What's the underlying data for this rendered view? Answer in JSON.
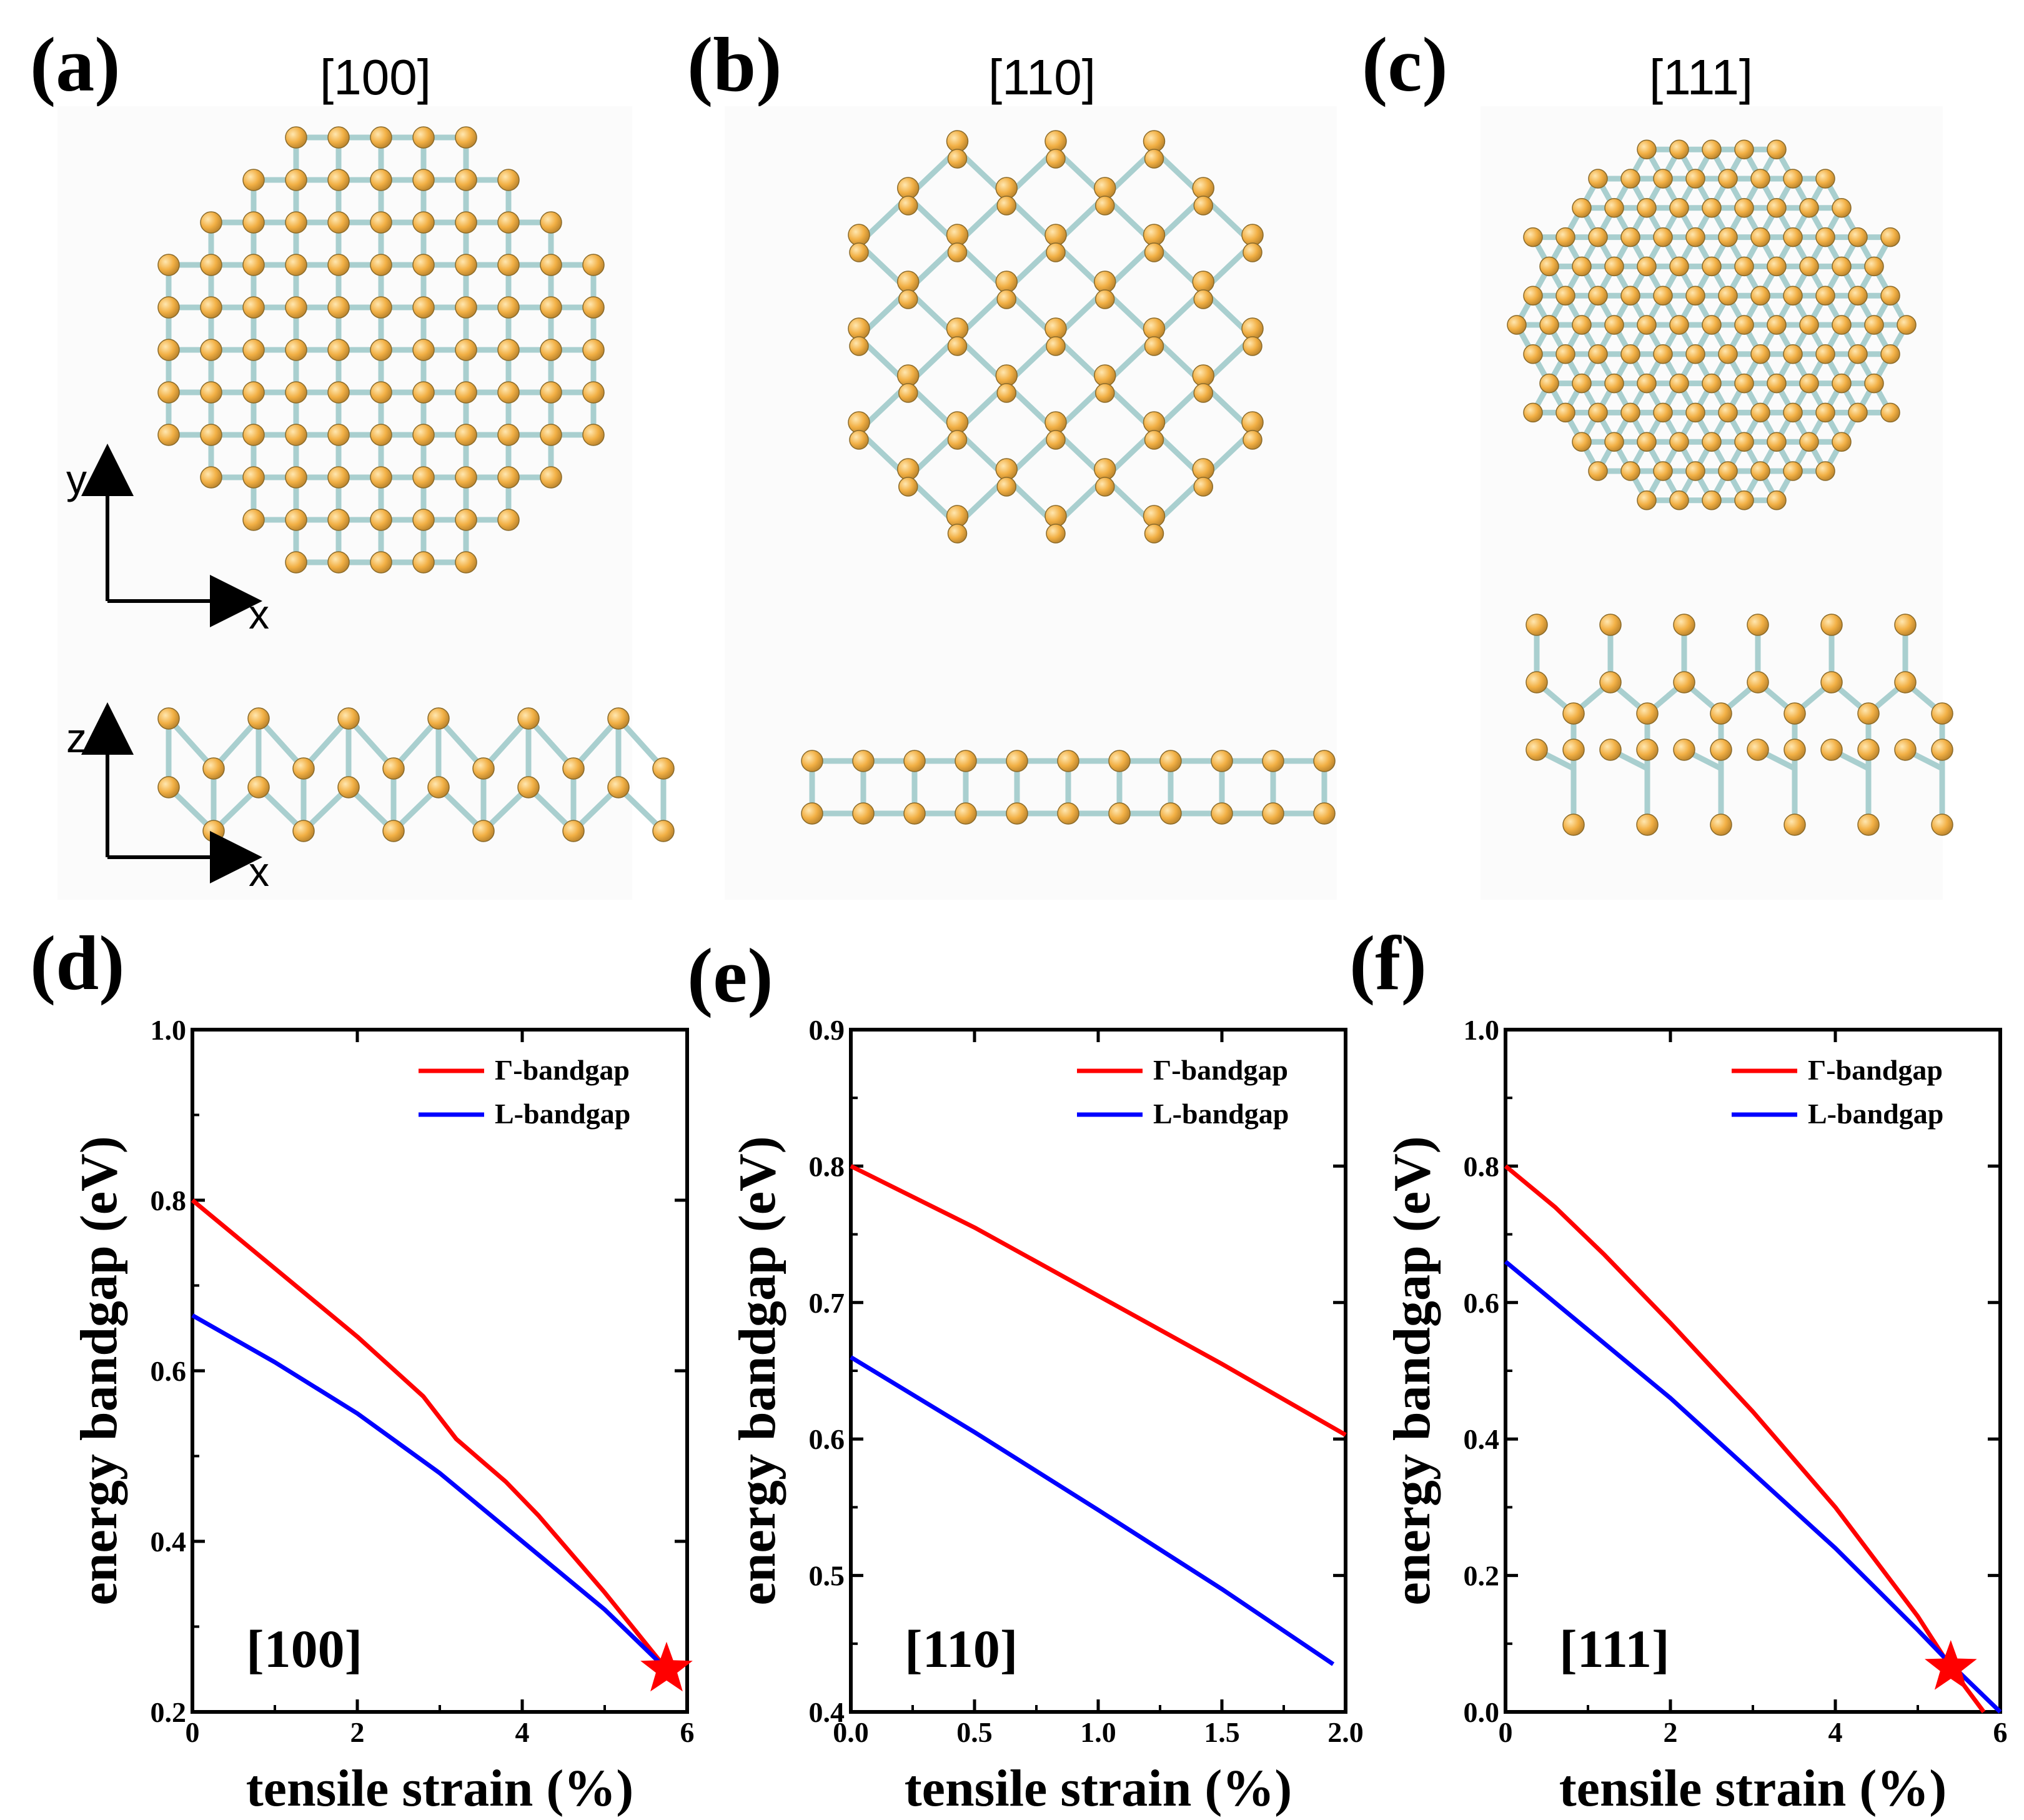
{
  "panels_top": [
    {
      "label": "(a)",
      "direction": "[100]",
      "axis_upper": [
        "x",
        "y"
      ],
      "axis_lower": [
        "x",
        "z"
      ]
    },
    {
      "label": "(b)",
      "direction": "[110]"
    },
    {
      "label": "(c)",
      "direction": "[111]"
    }
  ],
  "colors": {
    "gamma": "#ff0000",
    "L": "#0000ff",
    "atom": "#f2b045",
    "bond": "#a9cfcf",
    "star": "#ff0000"
  },
  "chart_data": [
    {
      "panel": "(d)",
      "type": "line",
      "inset_label": "[100]",
      "xlabel": "tensile strain (%)",
      "ylabel": "energy bandgap (eV)",
      "xlim": [
        0,
        6
      ],
      "ylim": [
        0.2,
        1.0
      ],
      "xticks": [
        "0",
        "2",
        "4",
        "6"
      ],
      "yticks": [
        "0.2",
        "0.4",
        "0.6",
        "0.8",
        "1.0"
      ],
      "legend": [
        "Γ-bandgap",
        "L-bandgap"
      ],
      "series": [
        {
          "name": "Γ-bandgap",
          "x": [
            0,
            1,
            2,
            2.8,
            3.2,
            3.8,
            4.2,
            5.0,
            5.75
          ],
          "y": [
            0.8,
            0.72,
            0.64,
            0.57,
            0.52,
            0.47,
            0.43,
            0.34,
            0.25
          ]
        },
        {
          "name": "L-bandgap",
          "x": [
            0,
            1,
            1.5,
            2,
            3,
            4,
            5,
            5.75
          ],
          "y": [
            0.665,
            0.61,
            0.58,
            0.55,
            0.48,
            0.4,
            0.32,
            0.25
          ]
        }
      ],
      "marker": {
        "shape": "star",
        "x": 5.75,
        "y": 0.25
      }
    },
    {
      "panel": "(e)",
      "type": "line",
      "inset_label": "[110]",
      "xlabel": "tensile strain (%)",
      "ylabel": "energy bandgap (eV)",
      "xlim": [
        0,
        2.0
      ],
      "ylim": [
        0.4,
        0.9
      ],
      "xticks": [
        "0.0",
        "0.5",
        "1.0",
        "1.5",
        "2.0"
      ],
      "yticks": [
        "0.4",
        "0.5",
        "0.6",
        "0.7",
        "0.8",
        "0.9"
      ],
      "legend": [
        "Γ-bandgap",
        "L-bandgap"
      ],
      "series": [
        {
          "name": "Γ-bandgap",
          "x": [
            0,
            0.5,
            1.0,
            1.5,
            2.0
          ],
          "y": [
            0.8,
            0.755,
            0.705,
            0.655,
            0.603
          ]
        },
        {
          "name": "L-bandgap",
          "x": [
            0,
            0.5,
            1.0,
            1.5,
            1.95
          ],
          "y": [
            0.66,
            0.605,
            0.548,
            0.49,
            0.435
          ]
        }
      ]
    },
    {
      "panel": "(f)",
      "type": "line",
      "inset_label": "[111]",
      "xlabel": "tensile strain (%)",
      "ylabel": "energy bandgap (eV)",
      "xlim": [
        0,
        6
      ],
      "ylim": [
        0.0,
        1.0
      ],
      "xticks": [
        "0",
        "2",
        "4",
        "6"
      ],
      "yticks": [
        "0.0",
        "0.2",
        "0.4",
        "0.6",
        "0.8",
        "1.0"
      ],
      "legend": [
        "Γ-bandgap",
        "L-bandgap"
      ],
      "series": [
        {
          "name": "Γ-bandgap",
          "x": [
            0,
            0.6,
            1.2,
            2,
            3,
            4,
            5,
            5.4,
            5.8
          ],
          "y": [
            0.8,
            0.74,
            0.67,
            0.57,
            0.44,
            0.3,
            0.14,
            0.065,
            0.0
          ]
        },
        {
          "name": "L-bandgap",
          "x": [
            0,
            1,
            2,
            3,
            4,
            5,
            5.4,
            6.0
          ],
          "y": [
            0.66,
            0.56,
            0.46,
            0.35,
            0.24,
            0.12,
            0.07,
            0.0
          ]
        }
      ],
      "marker": {
        "shape": "star",
        "x": 5.4,
        "y": 0.065
      }
    }
  ]
}
